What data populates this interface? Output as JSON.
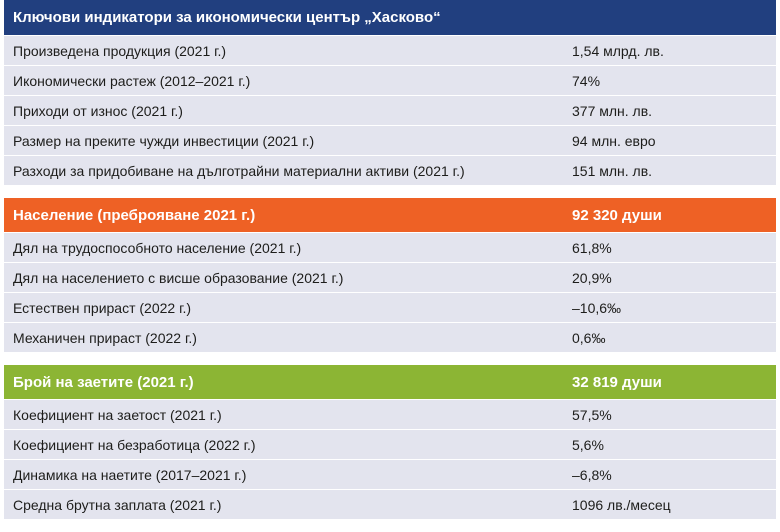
{
  "colors": {
    "blue": "#213f7f",
    "orange": "#ee6125",
    "green": "#8cb534",
    "row_bg": "#e3e4ee"
  },
  "section1": {
    "title": "Ключови индикатори за икономически център „Хасково“",
    "rows": [
      {
        "label": "Произведена продукция (2021 г.)",
        "value": "1,54 млрд. лв."
      },
      {
        "label": "Икономически растеж (2012–2021 г.)",
        "value": "74%"
      },
      {
        "label": "Приходи от износ (2021 г.)",
        "value": "377 млн. лв."
      },
      {
        "label": "Размер на преките чужди инвестиции (2021 г.)",
        "value": "94 млн. евро"
      },
      {
        "label": "Разходи за придобиване на дълготрайни материални активи (2021 г.)",
        "value": "151 млн. лв."
      }
    ]
  },
  "section2": {
    "title": "Население (преброяване 2021 г.)",
    "value": "92 320 души",
    "rows": [
      {
        "label": "Дял на трудоспособното население (2021 г.)",
        "value": "61,8%"
      },
      {
        "label": "Дял на населението с висше образование (2021 г.)",
        "value": "20,9%"
      },
      {
        "label": "Естествен прираст (2022 г.)",
        "value": "–10,6‰"
      },
      {
        "label": "Механичен прираст (2022 г.)",
        "value": "0,6‰"
      }
    ]
  },
  "section3": {
    "title": "Брой на заетите (2021 г.)",
    "value": "32 819 души",
    "rows": [
      {
        "label": "Коефициент на заетост (2021 г.)",
        "value": "57,5%"
      },
      {
        "label": "Коефициент на безработица (2022 г.)",
        "value": "5,6%"
      },
      {
        "label": "Динамика на наетите (2017–2021 г.)",
        "value": "–6,8%"
      },
      {
        "label": "Средна брутна заплата (2021 г.)",
        "value": "1096 лв./месец"
      }
    ]
  }
}
